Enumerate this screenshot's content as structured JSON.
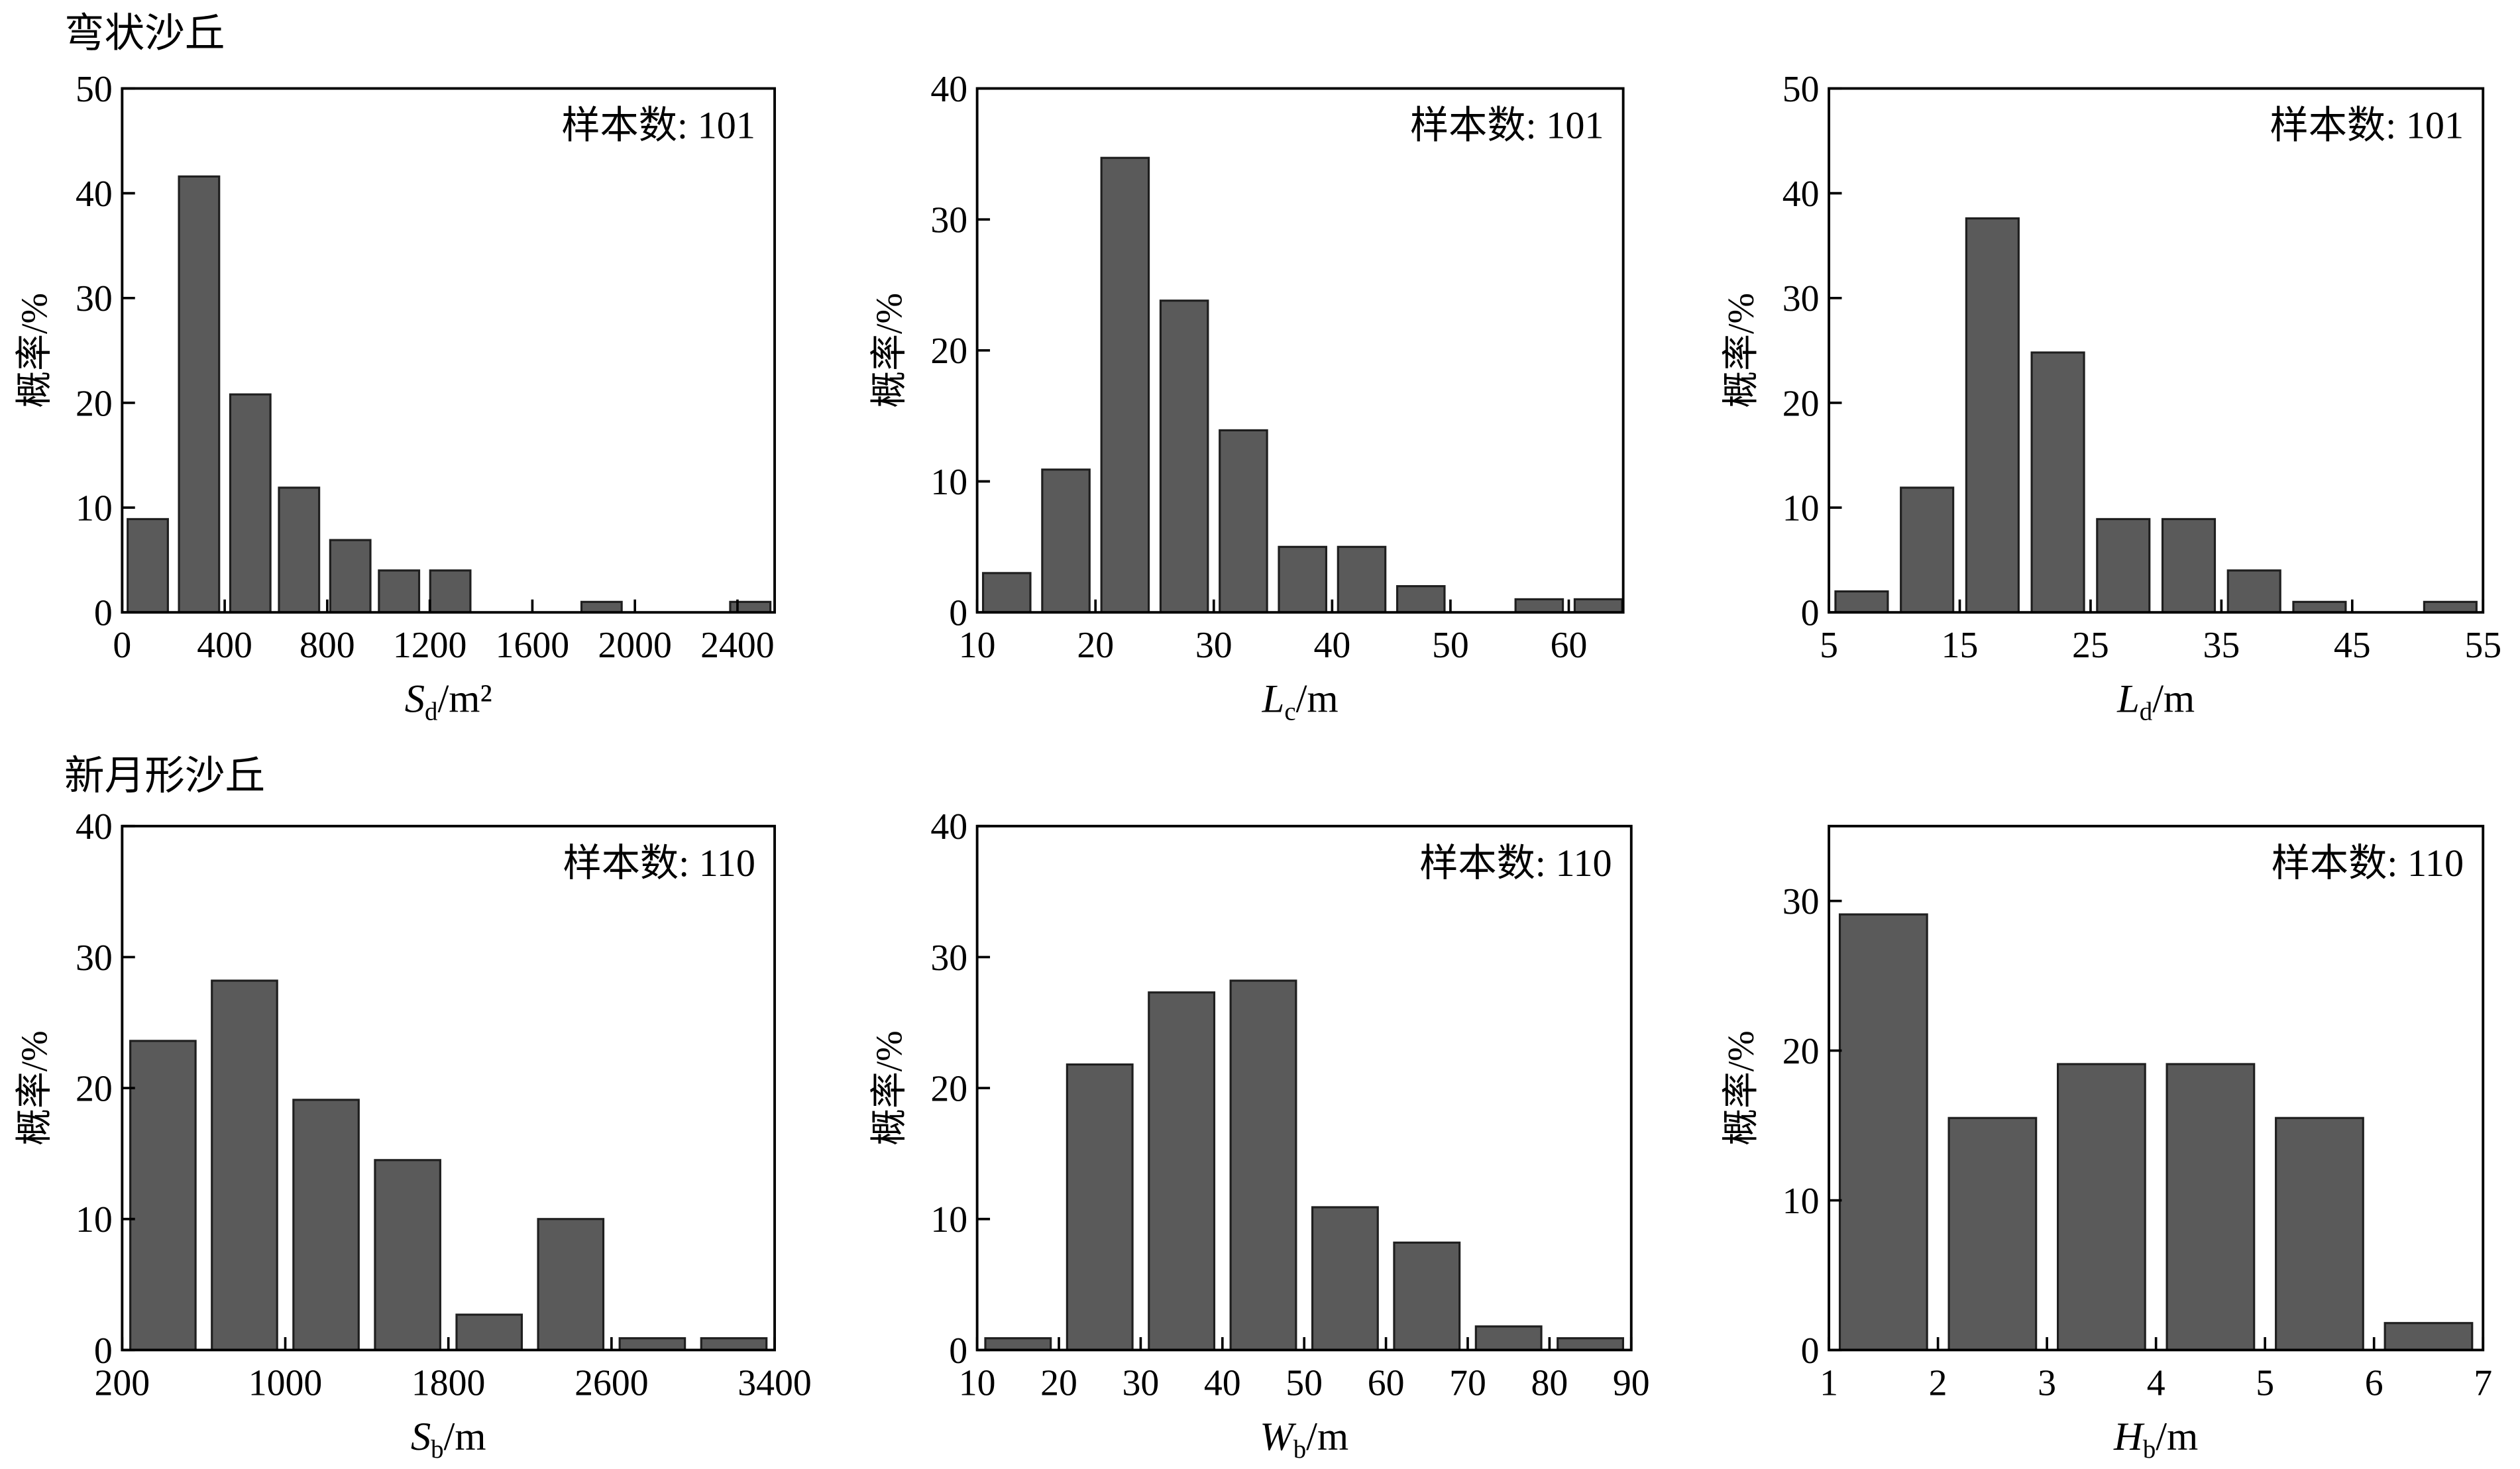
{
  "sections": [
    {
      "title": "弯状沙丘"
    },
    {
      "title": "新月形沙丘"
    }
  ],
  "colors": {
    "bar_fill": "#5a5a5a",
    "bar_edge": "#1f1f1f",
    "axis": "#000000"
  },
  "chart_data": [
    {
      "type": "bar",
      "x": [
        100,
        300,
        500,
        690,
        890,
        1080,
        1280,
        1480,
        1670,
        1870,
        2060,
        2260,
        2450
      ],
      "bin_width": 196,
      "values": [
        8.9,
        41.6,
        20.8,
        11.9,
        6.9,
        4.0,
        4.0,
        0,
        0,
        1.0,
        0,
        0,
        1.0
      ],
      "xlabel": {
        "symbol": "S",
        "subscript": "d",
        "unit": "/m²"
      },
      "ylabel": "概率/%",
      "annotation": "样本数: 101",
      "xlim": [
        0,
        2545
      ],
      "ylim": [
        0,
        50
      ],
      "xticks": [
        0,
        400,
        800,
        1200,
        1600,
        2000,
        2400
      ],
      "yticks": [
        0,
        10,
        20,
        30,
        40,
        50
      ],
      "grid": false
    },
    {
      "type": "bar",
      "x": [
        12.5,
        17.5,
        22.5,
        27.5,
        32.5,
        37.5,
        42.5,
        47.5,
        52.5,
        57.5,
        62.5
      ],
      "bin_width": 5,
      "values": [
        3.0,
        10.9,
        34.7,
        23.8,
        13.9,
        5.0,
        5.0,
        2.0,
        0,
        1.0,
        1.0
      ],
      "xlabel": {
        "symbol": "L",
        "subscript": "c",
        "unit": "/m"
      },
      "ylabel": "概率/%",
      "annotation": "样本数: 101",
      "xlim": [
        10,
        64.6
      ],
      "ylim": [
        0,
        40
      ],
      "xticks": [
        10,
        20,
        30,
        40,
        50,
        60
      ],
      "yticks": [
        0,
        10,
        20,
        30,
        40
      ],
      "grid": false
    },
    {
      "type": "bar",
      "x": [
        7.5,
        12.5,
        17.5,
        22.5,
        27.5,
        32.5,
        37.5,
        42.5,
        47.5,
        52.5
      ],
      "bin_width": 5,
      "values": [
        2.0,
        11.9,
        37.6,
        24.8,
        8.9,
        8.9,
        4.0,
        1.0,
        0,
        1.0
      ],
      "xlabel": {
        "symbol": "L",
        "subscript": "d",
        "unit": "/m"
      },
      "ylabel": "概率/%",
      "annotation": "样本数: 101",
      "xlim": [
        5,
        55
      ],
      "ylim": [
        0,
        50
      ],
      "xticks": [
        5,
        15,
        25,
        35,
        45,
        55
      ],
      "yticks": [
        0,
        10,
        20,
        30,
        40,
        50
      ],
      "grid": false
    },
    {
      "type": "bar",
      "x": [
        400,
        800,
        1200,
        1600,
        2000,
        2400,
        2800,
        3200
      ],
      "bin_width": 400,
      "values": [
        23.6,
        28.2,
        19.1,
        14.5,
        2.7,
        10.0,
        0.9,
        0.9
      ],
      "xlabel": {
        "symbol": "S",
        "subscript": "b",
        "unit": "/m"
      },
      "ylabel": "概率/%",
      "annotation": "样本数: 110",
      "xlim": [
        200,
        3400
      ],
      "ylim": [
        0,
        40
      ],
      "xticks": [
        200,
        1000,
        1800,
        2600,
        3400
      ],
      "yticks": [
        0,
        10,
        20,
        30,
        40
      ],
      "grid": false
    },
    {
      "type": "bar",
      "x": [
        15,
        25,
        35,
        45,
        55,
        65,
        75,
        85
      ],
      "bin_width": 10,
      "values": [
        0.9,
        21.8,
        27.3,
        28.2,
        10.9,
        8.2,
        1.8,
        0.9
      ],
      "xlabel": {
        "symbol": "W",
        "subscript": "b",
        "unit": "/m"
      },
      "ylabel": "概率/%",
      "annotation": "样本数: 110",
      "xlim": [
        10,
        90
      ],
      "ylim": [
        0,
        40
      ],
      "xticks": [
        10,
        20,
        30,
        40,
        50,
        60,
        70,
        80,
        90
      ],
      "yticks": [
        0,
        10,
        20,
        30,
        40
      ],
      "grid": false
    },
    {
      "type": "bar",
      "x": [
        1.5,
        2.5,
        3.5,
        4.5,
        5.5,
        6.5
      ],
      "bin_width": 1,
      "values": [
        29.1,
        15.5,
        19.1,
        19.1,
        15.5,
        1.8
      ],
      "xlabel": {
        "symbol": "H",
        "subscript": "b",
        "unit": "/m"
      },
      "ylabel": "概率/%",
      "annotation": "样本数: 110",
      "xlim": [
        1,
        7
      ],
      "ylim": [
        0,
        35
      ],
      "xticks": [
        1,
        2,
        3,
        4,
        5,
        6,
        7
      ],
      "yticks": [
        0,
        10,
        20,
        30
      ],
      "grid": false
    }
  ]
}
